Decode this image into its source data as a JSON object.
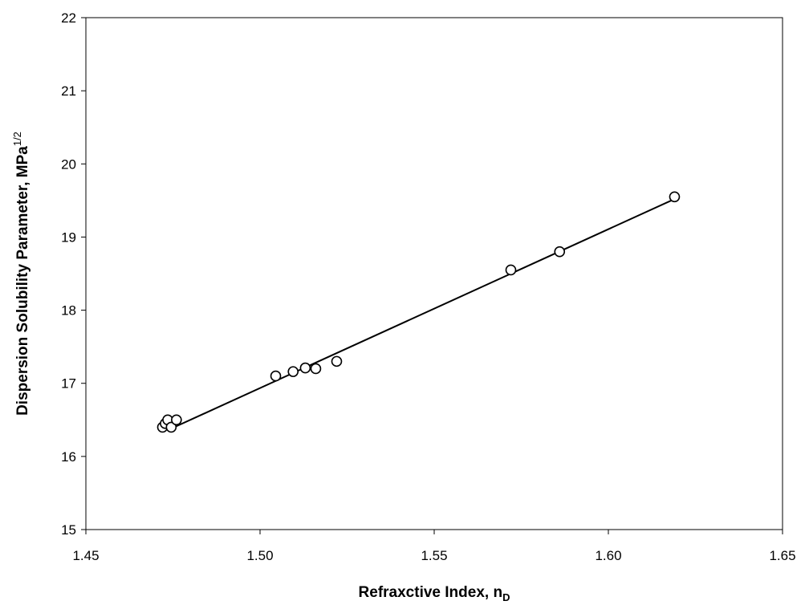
{
  "chart_data": {
    "type": "scatter",
    "xlabel": "Refraxctive Index, n",
    "xlabel_sub": "D",
    "ylabel": "Dispersion Solubility Parameter, MPa",
    "ylabel_sup": "1/2",
    "xlim": [
      1.45,
      1.65
    ],
    "ylim": [
      15,
      22
    ],
    "x_ticks": [
      "1.45",
      "1.50",
      "1.55",
      "1.60",
      "1.65"
    ],
    "y_ticks": [
      "15",
      "16",
      "17",
      "18",
      "19",
      "20",
      "21",
      "22"
    ],
    "grid": false,
    "legend": "none",
    "series": [
      {
        "marker": "open-circle",
        "color": "#000000",
        "x": [
          1.472,
          1.4728,
          1.4735,
          1.4745,
          1.476,
          1.5045,
          1.5095,
          1.513,
          1.516,
          1.522,
          1.572,
          1.586,
          1.619
        ],
        "y": [
          16.4,
          16.45,
          16.5,
          16.4,
          16.5,
          17.1,
          17.16,
          17.21,
          17.2,
          17.3,
          18.55,
          18.8,
          19.55
        ]
      }
    ],
    "trendline": {
      "type": "linear",
      "color": "#000000",
      "x": [
        1.474,
        1.619
      ],
      "y": [
        16.37,
        19.52
      ]
    }
  }
}
